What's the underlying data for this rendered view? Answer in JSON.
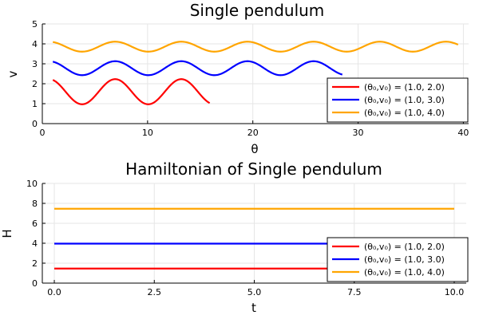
{
  "chart_data": [
    {
      "type": "line",
      "title": "Single pendulum",
      "xlabel": "θ",
      "ylabel": "v",
      "xlim": [
        0,
        40.5
      ],
      "ylim": [
        0,
        5
      ],
      "xticks": [
        0,
        10,
        20,
        30,
        40
      ],
      "yticks": [
        0,
        1,
        2,
        3,
        4,
        5
      ],
      "grid": true,
      "legend": "bottom-right",
      "series": [
        {
          "name": "(θ₀,v₀) = (1.0, 2.0)",
          "color": "#ff0000",
          "kind": "phase",
          "x_start": 1.0,
          "x_end": 15.9,
          "center": 1.6,
          "amplitude": 0.63,
          "phase0": -0.64
        },
        {
          "name": "(θ₀,v₀) = (1.0, 3.0)",
          "color": "#0000ff",
          "kind": "phase",
          "x_start": 1.0,
          "x_end": 28.5,
          "center": 2.78,
          "amplitude": 0.35,
          "phase0": -0.64
        },
        {
          "name": "(θ₀,v₀) = (1.0, 4.0)",
          "color": "#ffa500",
          "kind": "phase",
          "x_start": 1.0,
          "x_end": 39.5,
          "center": 3.86,
          "amplitude": 0.25,
          "phase0": -0.64
        }
      ]
    },
    {
      "type": "line",
      "title": "Hamiltonian of Single pendulum",
      "xlabel": "t",
      "ylabel": "H",
      "xlim": [
        -0.3,
        10.3
      ],
      "ylim": [
        0,
        10
      ],
      "xticks": [
        0.0,
        2.5,
        5.0,
        7.5,
        10.0
      ],
      "xtick_labels": [
        "0.0",
        "2.5",
        "5.0",
        "7.5",
        "10.0"
      ],
      "yticks": [
        0,
        2,
        4,
        6,
        8,
        10
      ],
      "grid": true,
      "legend": "bottom-right",
      "series": [
        {
          "name": "(θ₀,v₀) = (1.0, 2.0)",
          "color": "#ff0000",
          "x": [
            0,
            10
          ],
          "y": [
            1.46,
            1.46
          ]
        },
        {
          "name": "(θ₀,v₀) = (1.0, 3.0)",
          "color": "#0000ff",
          "x": [
            0,
            10
          ],
          "y": [
            3.96,
            3.96
          ]
        },
        {
          "name": "(θ₀,v₀) = (1.0, 4.0)",
          "color": "#ffa500",
          "x": [
            0,
            10
          ],
          "y": [
            7.46,
            7.46
          ]
        }
      ]
    }
  ]
}
